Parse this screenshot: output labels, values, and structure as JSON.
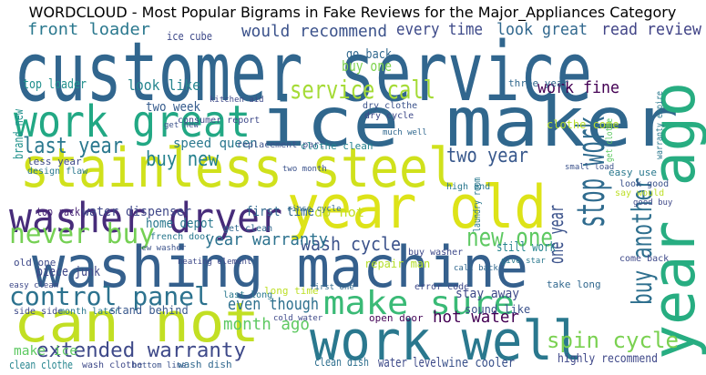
{
  "chart_data": {
    "type": "wordcloud",
    "title": "WORDCLOUD - Most Popular Bigrams in Fake Reviews for the Major_Appliances Category",
    "categories": [
      "customer service",
      "ice maker",
      "stainless steel",
      "year old",
      "washing machine",
      "work well",
      "can not",
      "year ago",
      "work great",
      "washer dryer",
      "service call",
      "stop work",
      "buy another",
      "one year",
      "make sure",
      "control panel",
      "never buy",
      "extended warranty",
      "spin cycle",
      "new one",
      "front loader",
      "would recommend",
      "every time",
      "look great",
      "read review",
      "last year",
      "buy new",
      "look like",
      "top loader",
      "ice cube",
      "work fine",
      "buy one",
      "go back",
      "two year",
      "wash cycle",
      "first time",
      "year warranty",
      "home depot",
      "water dispenser",
      "top rack",
      "piece junk",
      "even though",
      "month ago",
      "hot water",
      "stay away",
      "sound like",
      "do not",
      "still work",
      "two week",
      "clean dish",
      "water level",
      "wine cooler",
      "highly recommend",
      "open door",
      "make ice",
      "clean clothe",
      "wash clothe",
      "bottom line",
      "wash dish",
      "side side",
      "month later",
      "stand behind",
      "repair man",
      "come back",
      "take long",
      "long time",
      "last long",
      "speed queen",
      "replacement part",
      "consumer report",
      "clothe clean",
      "brand new",
      "less year",
      "three year",
      "clothe come",
      "get clothe",
      "warranty expire",
      "two month",
      "rinse cycle",
      "buy washer",
      "call back",
      "error code",
      "give star",
      "easy use",
      "look good",
      "say would",
      "good buy",
      "laundry room",
      "heating element",
      "get clean",
      "new washer",
      "dry clothe",
      "dry cycle",
      "much well",
      "design flaw",
      "kitchen aid",
      "get new",
      "small load",
      "cold water",
      "first one",
      "high end",
      "easy clean",
      "french door",
      "old one"
    ],
    "values": [
      90,
      75,
      60,
      65,
      62,
      60,
      60,
      65,
      48,
      45,
      28,
      42,
      30,
      22,
      36,
      28,
      30,
      22,
      24,
      28,
      18,
      18,
      18,
      18,
      18,
      24,
      22,
      16,
      14,
      12,
      18,
      16,
      14,
      22,
      20,
      14,
      18,
      14,
      14,
      12,
      14,
      18,
      18,
      18,
      14,
      12,
      14,
      14,
      14,
      12,
      14,
      14,
      13,
      11,
      14,
      12,
      10,
      9,
      11,
      10,
      10,
      12,
      12,
      10,
      11,
      11,
      10,
      14,
      10,
      10,
      11,
      14,
      11,
      11,
      12,
      10,
      10,
      9,
      9,
      10,
      9,
      10,
      9,
      11,
      10,
      10,
      9,
      11,
      9,
      10,
      9,
      10,
      10,
      9,
      10,
      9,
      9,
      9,
      9,
      9,
      10,
      9,
      10,
      11
    ],
    "colors": [
      "#31668e",
      "#30678d",
      "#d0e11c",
      "#dde318",
      "#35608d",
      "#2a788e",
      "#c2df23",
      "#27ad81",
      "#22a884",
      "#472c7a",
      "#a5db36",
      "#2f6b8e",
      "#2e6f8e",
      "#3b528b",
      "#3aba76",
      "#2c728e",
      "#75d054",
      "#3e4989",
      "#7ad151",
      "#5ec962",
      "#2a788e",
      "#3b528b",
      "#3e4a89",
      "#31688e",
      "#414487",
      "#2a788e",
      "#26828e",
      "#25858e",
      "#21908d",
      "#3e4989",
      "#440154",
      "#7fd34e",
      "#31688e",
      "#38588c",
      "#3b528b",
      "#31688e",
      "#2c728e",
      "#2a788e",
      "#3f4788",
      "#482475",
      "#3f4788",
      "#2d708e",
      "#5ec962",
      "#440154",
      "#3e4989",
      "#3b528b",
      "#c2df23",
      "#25848e",
      "#365c8d",
      "#2e6f8e",
      "#3e4a89",
      "#3b528b",
      "#3f4889",
      "#450457",
      "#5ec962",
      "#25858e",
      "#3e4989",
      "#3b528b",
      "#31688e",
      "#3e4989",
      "#2a788e",
      "#38588c",
      "#b5de2b",
      "#3e4989",
      "#31688e",
      "#bddf26",
      "#2a788e",
      "#2a788e",
      "#3b528b",
      "#3e4989",
      "#26828e",
      "#21918c",
      "#3e4989",
      "#31688e",
      "#b8de29",
      "#5ec962",
      "#2a788e",
      "#3b528b",
      "#31688e",
      "#3e4989",
      "#31688e",
      "#3e4989",
      "#2a788e",
      "#2a788e",
      "#3b528b",
      "#bddf26",
      "#3e4989",
      "#2a788e",
      "#3e4989",
      "#31688e",
      "#3b528b",
      "#3b528b",
      "#3e4989",
      "#31688e",
      "#2a788e",
      "#3e4989",
      "#3b528b",
      "#3b528b",
      "#3e4989",
      "#31688e",
      "#2a788e",
      "#3e4989",
      "#2a788e",
      "#3e4989"
    ]
  }
}
